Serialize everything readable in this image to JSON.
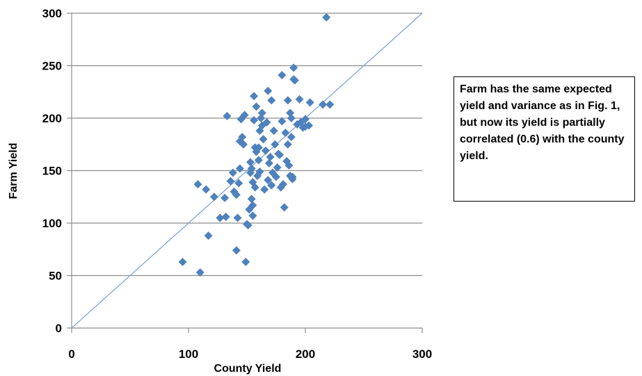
{
  "chart_data": {
    "type": "scatter",
    "xlabel": "County Yield",
    "ylabel": "Farm Yield",
    "xlim": [
      0,
      300
    ],
    "ylim": [
      0,
      300
    ],
    "xticks": [
      "0",
      "100",
      "200",
      "300"
    ],
    "yticks": [
      "0",
      "50",
      "100",
      "150",
      "200",
      "250",
      "300"
    ],
    "grid": "horizontal",
    "marker_color": "#4f81bd",
    "reference_line": {
      "from": [
        0,
        0
      ],
      "to": [
        300,
        300
      ],
      "color": "#7ea6d8"
    },
    "series": [
      {
        "points": [
          [
            218,
            296
          ],
          [
            95,
            63
          ],
          [
            110,
            53
          ],
          [
            108,
            137
          ],
          [
            115,
            132
          ],
          [
            117,
            88
          ],
          [
            122,
            125
          ],
          [
            127,
            105
          ],
          [
            131,
            124
          ],
          [
            132,
            106
          ],
          [
            133,
            202
          ],
          [
            136,
            140
          ],
          [
            138,
            148
          ],
          [
            139,
            130
          ],
          [
            141,
            74
          ],
          [
            141,
            127
          ],
          [
            142,
            105
          ],
          [
            143,
            138
          ],
          [
            144,
            152
          ],
          [
            144,
            178
          ],
          [
            145,
            199
          ],
          [
            146,
            182
          ],
          [
            147,
            175
          ],
          [
            148,
            203
          ],
          [
            149,
            63
          ],
          [
            150,
            99
          ],
          [
            151,
            98
          ],
          [
            152,
            113
          ],
          [
            153,
            158
          ],
          [
            153,
            148
          ],
          [
            154,
            123
          ],
          [
            154,
            152
          ],
          [
            155,
            107
          ],
          [
            155,
            117
          ],
          [
            155,
            139
          ],
          [
            156,
            221
          ],
          [
            156,
            198
          ],
          [
            157,
            172
          ],
          [
            157,
            134
          ],
          [
            158,
            168
          ],
          [
            158,
            211
          ],
          [
            159,
            145
          ],
          [
            160,
            160
          ],
          [
            160,
            172
          ],
          [
            161,
            149
          ],
          [
            161,
            188
          ],
          [
            162,
            200
          ],
          [
            163,
            205
          ],
          [
            163,
            193
          ],
          [
            164,
            180
          ],
          [
            165,
            132
          ],
          [
            166,
            169
          ],
          [
            167,
            196
          ],
          [
            168,
            226
          ],
          [
            168,
            141
          ],
          [
            169,
            157
          ],
          [
            170,
            163
          ],
          [
            171,
            217
          ],
          [
            171,
            136
          ],
          [
            172,
            148
          ],
          [
            173,
            188
          ],
          [
            174,
            175
          ],
          [
            175,
            144
          ],
          [
            176,
            153
          ],
          [
            177,
            166
          ],
          [
            178,
            165
          ],
          [
            179,
            134
          ],
          [
            180,
            241
          ],
          [
            180,
            197
          ],
          [
            181,
            137
          ],
          [
            182,
            115
          ],
          [
            183,
            186
          ],
          [
            184,
            159
          ],
          [
            185,
            175
          ],
          [
            185,
            217
          ],
          [
            186,
            155
          ],
          [
            187,
            145
          ],
          [
            187,
            205
          ],
          [
            188,
            200
          ],
          [
            188,
            182
          ],
          [
            189,
            142
          ],
          [
            189,
            144
          ],
          [
            190,
            248
          ],
          [
            190,
            237
          ],
          [
            191,
            236
          ],
          [
            193,
            194
          ],
          [
            195,
            218
          ],
          [
            196,
            196
          ],
          [
            198,
            191
          ],
          [
            200,
            199
          ],
          [
            200,
            192
          ],
          [
            203,
            193
          ],
          [
            204,
            215
          ],
          [
            215,
            213
          ],
          [
            221,
            213
          ]
        ]
      }
    ],
    "annotation": "Farm has the same expected yield and variance as in Fig. 1, but now its yield is partially correlated (0.6) with the county yield."
  }
}
